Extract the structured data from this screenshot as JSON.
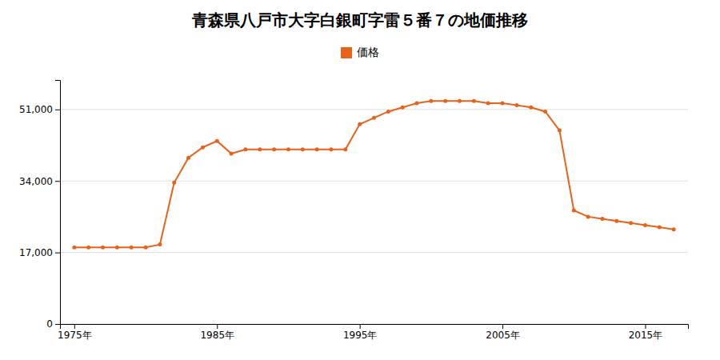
{
  "chart_data": {
    "type": "line",
    "title": "青森県八戸市大字白銀町字雷５番７の地価推移",
    "x": [
      1975,
      1976,
      1977,
      1978,
      1979,
      1980,
      1981,
      1982,
      1983,
      1984,
      1985,
      1986,
      1987,
      1988,
      1989,
      1990,
      1991,
      1992,
      1993,
      1994,
      1995,
      1996,
      1997,
      1998,
      1999,
      2000,
      2001,
      2002,
      2003,
      2004,
      2005,
      2006,
      2007,
      2008,
      2009,
      2010,
      2011,
      2012,
      2013,
      2014,
      2015,
      2016,
      2017
    ],
    "series": [
      {
        "name": "価格",
        "color": "#e8621a",
        "marker": "circle",
        "values": [
          18200,
          18200,
          18200,
          18200,
          18200,
          18200,
          18900,
          33600,
          39500,
          42000,
          43500,
          40500,
          41500,
          41500,
          41500,
          41500,
          41500,
          41500,
          41500,
          41500,
          47500,
          49000,
          50500,
          51500,
          52500,
          53000,
          53000,
          53000,
          53000,
          52500,
          52500,
          52000,
          51500,
          50500,
          46000,
          27000,
          25500,
          25000,
          24500,
          24000,
          23500,
          23000,
          22500
        ]
      }
    ],
    "xlim": [
      1974,
      2018
    ],
    "xticks": [
      {
        "value": 1975,
        "label": "1975年"
      },
      {
        "value": 1985,
        "label": "1985年"
      },
      {
        "value": 1995,
        "label": "1995年"
      },
      {
        "value": 2005,
        "label": "2005年"
      },
      {
        "value": 2015,
        "label": "2015年"
      }
    ],
    "ylim": [
      0,
      58000
    ],
    "yticks": [
      0,
      {
        "value": 17000,
        "label": "17,000"
      },
      {
        "value": 34000,
        "label": "34,000"
      },
      {
        "value": 51000,
        "label": "51,000"
      }
    ],
    "grid": "y",
    "legend": "top"
  }
}
